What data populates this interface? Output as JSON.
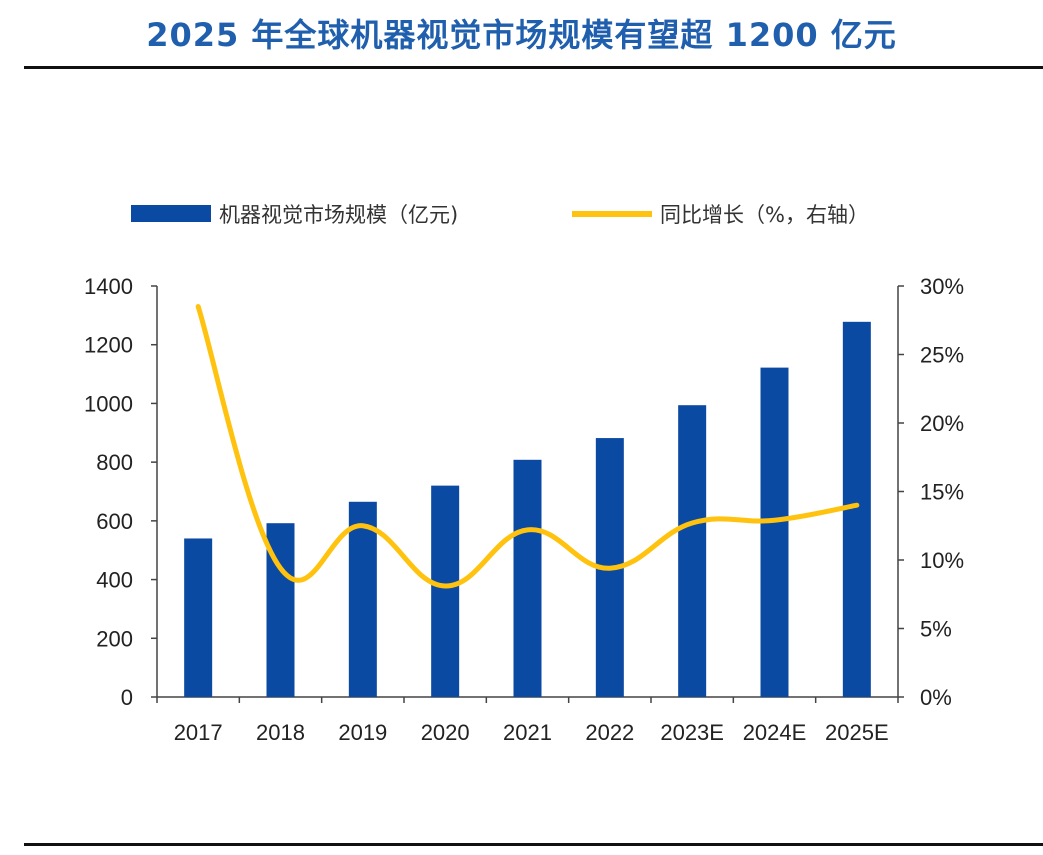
{
  "header": {
    "title": "2025 年全球机器视觉市场规模有望超 1200 亿元"
  },
  "chart_data": {
    "type": "bar",
    "categories": [
      "2017",
      "2018",
      "2019",
      "2020",
      "2021",
      "2022",
      "2023E",
      "2024E",
      "2025E"
    ],
    "series": [
      {
        "name": "机器视觉市场规模（亿元)",
        "type": "bar",
        "axis": "left",
        "color": "#0b4aa2",
        "values": [
          540,
          592,
          665,
          720,
          808,
          882,
          994,
          1122,
          1278
        ]
      },
      {
        "name": "同比增长（%，右轴）",
        "type": "line",
        "axis": "right",
        "color": "#ffc20e",
        "values": [
          28.5,
          9.4,
          12.5,
          8.1,
          12.2,
          9.4,
          12.7,
          12.9,
          14.0
        ]
      }
    ],
    "left_axis": {
      "min": 0,
      "max": 1400,
      "ticks": [
        "0",
        "200",
        "400",
        "600",
        "800",
        "1000",
        "1200",
        "1400"
      ]
    },
    "right_axis": {
      "min": 0,
      "max": 30,
      "ticks": [
        "0%",
        "5%",
        "10%",
        "15%",
        "20%",
        "25%",
        "30%"
      ]
    },
    "legend_position": "top"
  }
}
